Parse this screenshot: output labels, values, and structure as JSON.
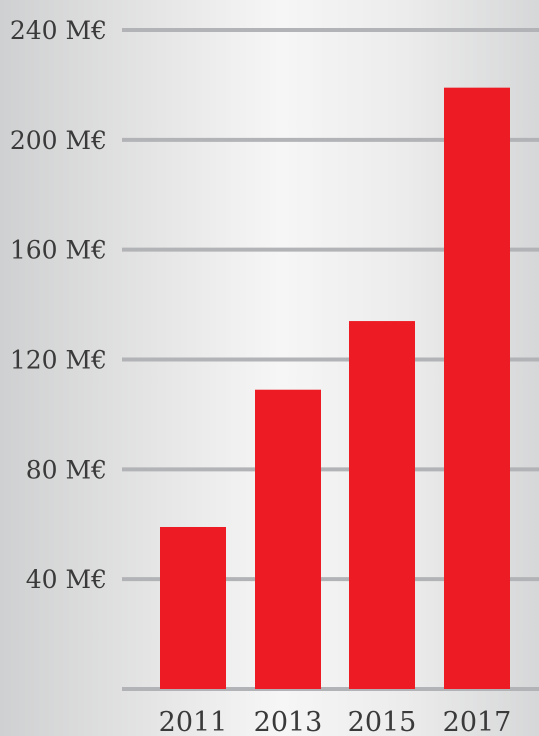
{
  "chart_data": {
    "type": "bar",
    "title": "",
    "xlabel": "",
    "ylabel": "",
    "categories": [
      "2011",
      "2013",
      "2015",
      "2017"
    ],
    "values": [
      59,
      109,
      134,
      219
    ],
    "unit": "M€",
    "ylim": [
      0,
      240
    ],
    "y_ticks": [
      40,
      80,
      120,
      160,
      200,
      240
    ],
    "y_tick_labels": [
      "40 M€",
      "80 M€",
      "120 M€",
      "160 M€",
      "200 M€",
      "240 M€"
    ],
    "grid": true,
    "legend": "none",
    "colors": {
      "bar": "#ed1c24",
      "grid": "#b2b3b6",
      "text": "#3a3a3a"
    }
  }
}
